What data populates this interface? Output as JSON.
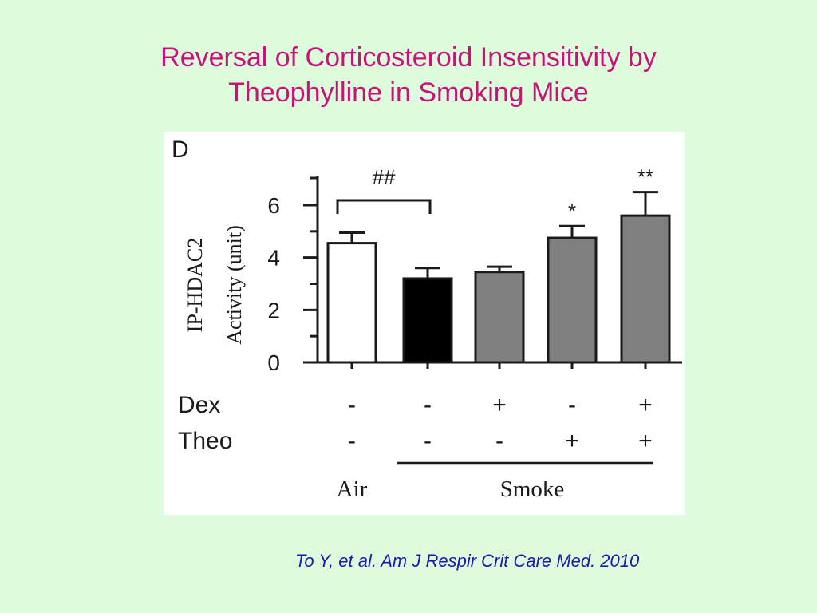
{
  "slide": {
    "title_line1": "Reversal of Corticosteroid Insensitivity by",
    "title_line2": "Theophylline in Smoking Mice",
    "citation": "To Y, et al. Am J Respir Crit Care Med. 2010",
    "title_color": "#cc0f7a",
    "citation_color": "#1a1ab0",
    "background_color": "#dcfcdc"
  },
  "chart_data": {
    "type": "bar",
    "panel_label": "D",
    "ylabel_line1": "IP-HDAC2",
    "ylabel_line2": "Activity (unit)",
    "ylim": [
      0,
      7
    ],
    "yticks": [
      0,
      2,
      4,
      6
    ],
    "categories": [
      "Air",
      "Smoke",
      "Smoke + Dex",
      "Smoke + Theo",
      "Smoke + Dex + Theo"
    ],
    "values": [
      4.55,
      3.2,
      3.45,
      4.75,
      5.6
    ],
    "errors": [
      0.4,
      0.4,
      0.2,
      0.45,
      0.9
    ],
    "bar_colors": [
      "#ffffff",
      "#000000",
      "#808080",
      "#808080",
      "#808080"
    ],
    "significance": [
      "",
      "",
      "",
      "*",
      "**"
    ],
    "bracket": {
      "label": "##",
      "from": 0,
      "to": 1
    },
    "treatments": [
      {
        "name": "Dex",
        "values": [
          "-",
          "-",
          "+",
          "-",
          "+"
        ]
      },
      {
        "name": "Theo",
        "values": [
          "-",
          "-",
          "-",
          "+",
          "+"
        ]
      }
    ],
    "groups": {
      "air_label": "Air",
      "smoke_label": "Smoke"
    }
  }
}
